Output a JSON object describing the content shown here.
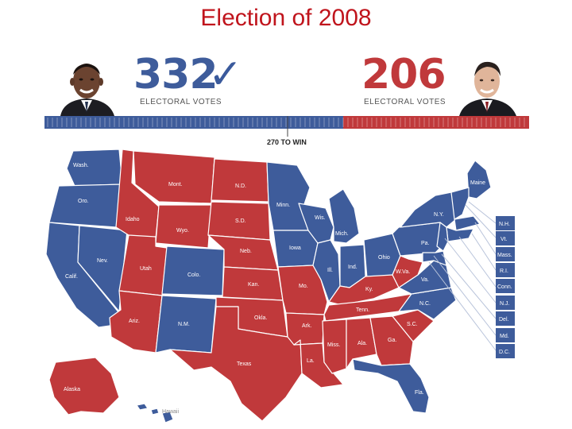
{
  "title": "Election of 2008",
  "colors": {
    "dem": "#3e5c9b",
    "rep": "#c0393b",
    "title": "#c0141c"
  },
  "scoreboard": {
    "left": {
      "votes": "332",
      "label": "ELECTORAL VOTES",
      "icon": "checkmark-icon",
      "color": "#3e5c9b"
    },
    "right": {
      "votes": "206",
      "label": "ELECTORAL VOTES",
      "color": "#c0393b"
    },
    "threshold_label": "270 TO WIN",
    "dem_share": 0.617
  },
  "states": [
    {
      "label": "Wash.",
      "winner": "dem"
    },
    {
      "label": "Oro.",
      "winner": "dem"
    },
    {
      "label": "Calif.",
      "winner": "dem"
    },
    {
      "label": "Nev.",
      "winner": "dem"
    },
    {
      "label": "Idaho",
      "winner": "rep"
    },
    {
      "label": "Mont.",
      "winner": "rep"
    },
    {
      "label": "Wyo.",
      "winner": "rep"
    },
    {
      "label": "Utah",
      "winner": "rep"
    },
    {
      "label": "Colo.",
      "winner": "dem"
    },
    {
      "label": "Ariz.",
      "winner": "rep"
    },
    {
      "label": "N.M.",
      "winner": "dem"
    },
    {
      "label": "N.D.",
      "winner": "rep"
    },
    {
      "label": "S.D.",
      "winner": "rep"
    },
    {
      "label": "Neb.",
      "winner": "rep"
    },
    {
      "label": "Kan.",
      "winner": "rep"
    },
    {
      "label": "Okla.",
      "winner": "rep"
    },
    {
      "label": "Texas",
      "winner": "rep"
    },
    {
      "label": "Minn.",
      "winner": "dem"
    },
    {
      "label": "Iowa",
      "winner": "dem"
    },
    {
      "label": "Mo.",
      "winner": "rep"
    },
    {
      "label": "Ark.",
      "winner": "rep"
    },
    {
      "label": "La.",
      "winner": "rep"
    },
    {
      "label": "Wis.",
      "winner": "dem"
    },
    {
      "label": "Ill.",
      "winner": "dem"
    },
    {
      "label": "Mich.",
      "winner": "dem"
    },
    {
      "label": "Ind.",
      "winner": "dem"
    },
    {
      "label": "Ohio",
      "winner": "dem"
    },
    {
      "label": "Ky.",
      "winner": "rep"
    },
    {
      "label": "Tenn.",
      "winner": "rep"
    },
    {
      "label": "Miss.",
      "winner": "rep"
    },
    {
      "label": "Ala.",
      "winner": "rep"
    },
    {
      "label": "Ga.",
      "winner": "rep"
    },
    {
      "label": "Fla.",
      "winner": "dem"
    },
    {
      "label": "S.C.",
      "winner": "rep"
    },
    {
      "label": "N.C.",
      "winner": "dem"
    },
    {
      "label": "Va.",
      "winner": "dem"
    },
    {
      "label": "W.Va.",
      "winner": "rep"
    },
    {
      "label": "Pa.",
      "winner": "dem"
    },
    {
      "label": "N.Y.",
      "winner": "dem"
    },
    {
      "label": "Maine",
      "winner": "dem"
    },
    {
      "label": "Alaska",
      "winner": "rep"
    },
    {
      "label": "Hawaii",
      "winner": "dem"
    }
  ],
  "small_states": [
    "N.H.",
    "Vt.",
    "Mass.",
    "R.I.",
    "Conn.",
    "N.J.",
    "Del.",
    "Md.",
    "D.C."
  ]
}
